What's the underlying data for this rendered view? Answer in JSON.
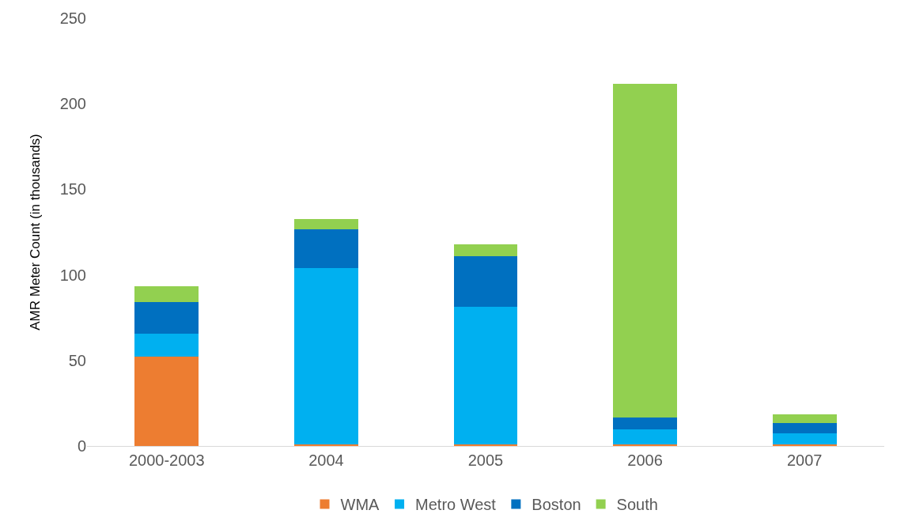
{
  "chart_data": {
    "type": "bar",
    "stacked": true,
    "ylabel": "AMR Meter Count (in thousands)",
    "categories": [
      "2000-2003",
      "2004",
      "2005",
      "2006",
      "2007"
    ],
    "series": [
      {
        "name": "WMA",
        "color": "#ed7d31",
        "values": [
          52,
          1,
          1,
          1,
          1
        ]
      },
      {
        "name": "Metro West",
        "color": "#00b0f0",
        "values": [
          13.5,
          103,
          80.5,
          8.5,
          6.5
        ]
      },
      {
        "name": "Boston",
        "color": "#0070c0",
        "values": [
          18.5,
          22.5,
          29.5,
          7,
          6
        ]
      },
      {
        "name": "South",
        "color": "#92d050",
        "values": [
          9.5,
          6,
          7,
          195,
          5
        ]
      }
    ],
    "ylim": [
      0,
      250
    ],
    "yticks": [
      0,
      50,
      100,
      150,
      200,
      250
    ],
    "grid": false,
    "legend": "bottom"
  }
}
